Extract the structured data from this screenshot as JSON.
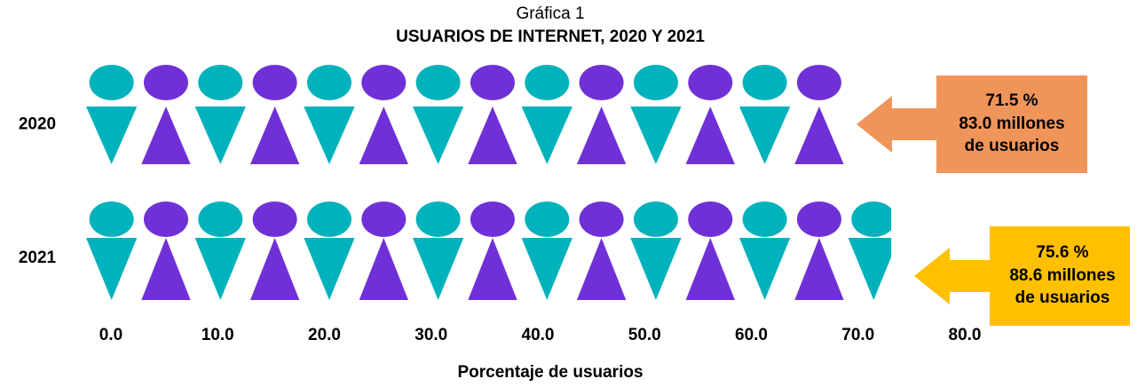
{
  "chart_data": {
    "type": "pictograph",
    "title": "Gráfica 1",
    "subtitle": "USUARIOS DE INTERNET, 2020 Y 2021",
    "categories": [
      "2020",
      "2021"
    ],
    "values": [
      71.5,
      75.6
    ],
    "value_labels": [
      "71.5 %",
      "75.6 %"
    ],
    "annotations": [
      {
        "lines": [
          "83.0 millones",
          "de usuarios"
        ],
        "color": "#f0955a"
      },
      {
        "lines": [
          "88.6 millones",
          "de usuarios"
        ],
        "color": "#ffc000"
      }
    ],
    "colors": [
      "#00b2bc",
      "#7030d8"
    ],
    "xlim": [
      0,
      80
    ],
    "xticks": [
      {
        "value": 0,
        "label": "0.0"
      },
      {
        "value": 10,
        "label": "10.0"
      },
      {
        "value": 20,
        "label": "20.0"
      },
      {
        "value": 30,
        "label": "30.0"
      },
      {
        "value": 40,
        "label": "40.0"
      },
      {
        "value": 50,
        "label": "50.0"
      },
      {
        "value": 60,
        "label": "60.0"
      },
      {
        "value": 70,
        "label": "70.0"
      },
      {
        "value": 80,
        "label": "80.0"
      }
    ],
    "xlabel": "Porcentaje de usuarios"
  }
}
